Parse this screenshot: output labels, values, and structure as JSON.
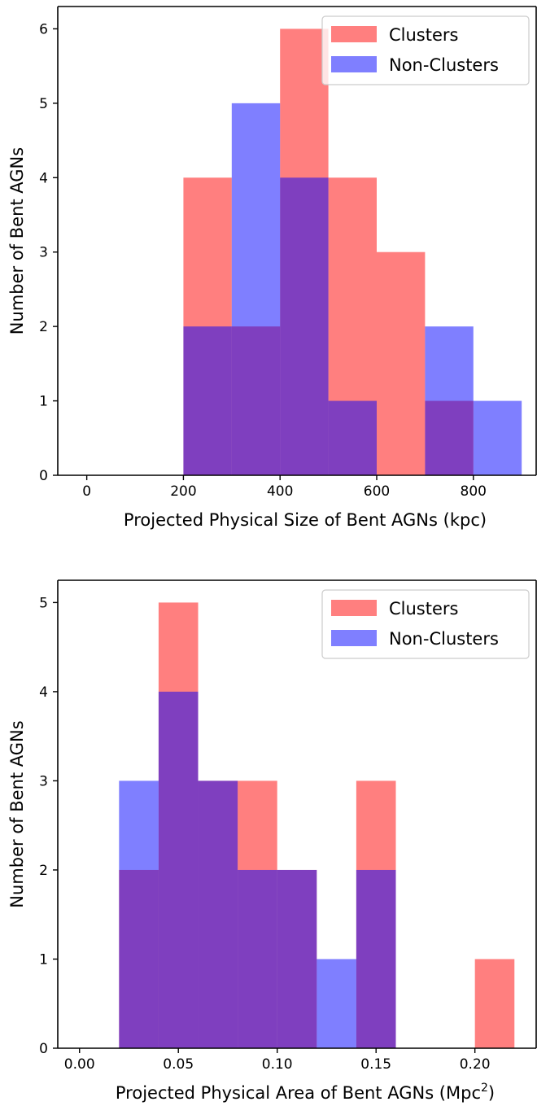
{
  "chart_data": [
    {
      "type": "bar",
      "xlabel": "Projected Physical Size of Bent AGNs (kpc)",
      "ylabel": "Number of Bent AGNs",
      "xlim": [
        -60,
        930
      ],
      "ylim": [
        0,
        6.3
      ],
      "x_ticks": [
        "0",
        "200",
        "400",
        "600",
        "800"
      ],
      "y_ticks": [
        "0",
        "1",
        "2",
        "3",
        "4",
        "5",
        "6"
      ],
      "legend_position": "top-right",
      "series": [
        {
          "name": "Clusters",
          "color": "#ff7f7f",
          "bins": [
            [
              200,
              300
            ],
            [
              300,
              400
            ],
            [
              400,
              500
            ],
            [
              500,
              600
            ],
            [
              600,
              700
            ],
            [
              700,
              800
            ]
          ],
          "values": [
            4,
            2,
            6,
            4,
            3,
            1
          ]
        },
        {
          "name": "Non-Clusters",
          "color": "#7f7fff",
          "bins": [
            [
              200,
              300
            ],
            [
              300,
              400
            ],
            [
              400,
              500
            ],
            [
              500,
              600
            ],
            [
              600,
              700
            ],
            [
              700,
              800
            ],
            [
              800,
              900
            ]
          ],
          "values": [
            2,
            5,
            4,
            1,
            0,
            2,
            1
          ]
        }
      ]
    },
    {
      "type": "bar",
      "xlabel": "Projected Physical Area of Bent AGNs (Mpc",
      "xlabel_sup": "2",
      "xlabel_suffix": ")",
      "ylabel": "Number of Bent AGNs",
      "xlim": [
        -0.011,
        0.231
      ],
      "ylim": [
        0,
        5.25
      ],
      "x_ticks": [
        "0.00",
        "0.05",
        "0.10",
        "0.15",
        "0.20"
      ],
      "y_ticks": [
        "0",
        "1",
        "2",
        "3",
        "4",
        "5"
      ],
      "legend_position": "top-right",
      "series": [
        {
          "name": "Clusters",
          "color": "#ff7f7f",
          "bins": [
            [
              0.02,
              0.04
            ],
            [
              0.04,
              0.06
            ],
            [
              0.06,
              0.08
            ],
            [
              0.08,
              0.1
            ],
            [
              0.1,
              0.12
            ],
            [
              0.12,
              0.14
            ],
            [
              0.14,
              0.16
            ],
            [
              0.16,
              0.18
            ],
            [
              0.18,
              0.2
            ],
            [
              0.2,
              0.22
            ]
          ],
          "values": [
            2,
            5,
            3,
            3,
            2,
            0,
            3,
            0,
            0,
            1
          ]
        },
        {
          "name": "Non-Clusters",
          "color": "#7f7fff",
          "bins": [
            [
              0.02,
              0.04
            ],
            [
              0.04,
              0.06
            ],
            [
              0.06,
              0.08
            ],
            [
              0.08,
              0.1
            ],
            [
              0.1,
              0.12
            ],
            [
              0.12,
              0.14
            ],
            [
              0.14,
              0.16
            ]
          ],
          "values": [
            3,
            4,
            3,
            2,
            2,
            1,
            2
          ]
        }
      ]
    }
  ]
}
